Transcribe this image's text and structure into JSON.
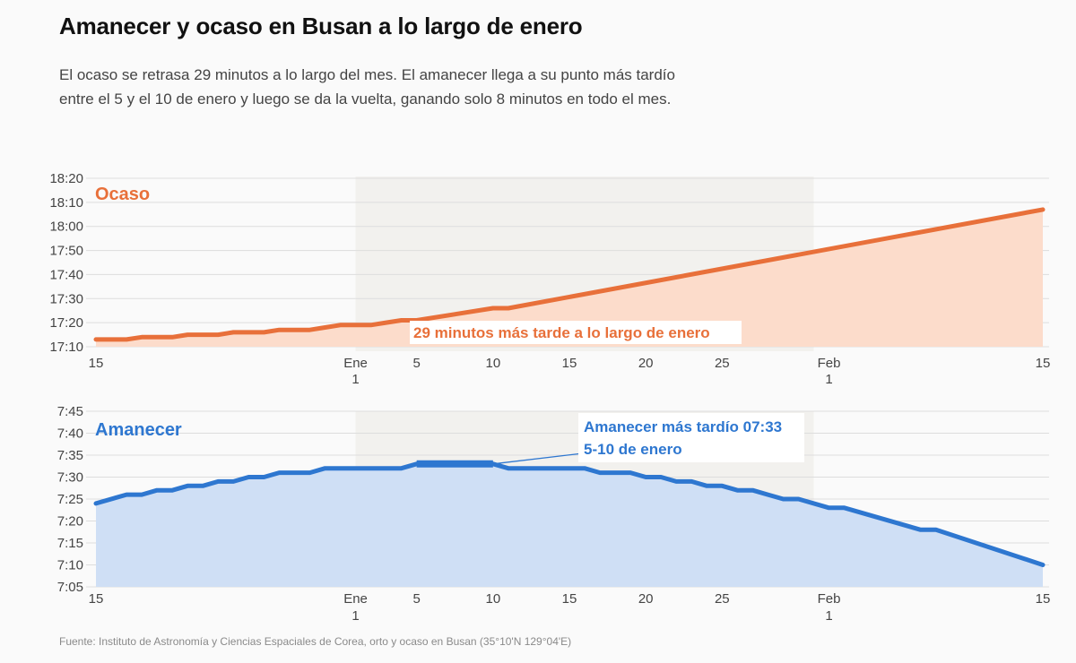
{
  "header": {
    "title": "Amanecer y ocaso en Busan a lo largo de enero",
    "subtitle": "El ocaso se retrasa 29 minutos a lo largo del mes. El amanecer llega a su punto más tardío entre el 5 y el 10 de enero y luego se da la vuelta, ganando solo 8 minutos en todo el mes."
  },
  "footer": {
    "source": "Fuente: Instituto de Astronomía y Ciencias Espaciales de Corea, orto y ocaso en Busan (35°10'N 129°04'E)"
  },
  "colors": {
    "sunset": "#e8703a",
    "sunset_fill": "#fcdccb",
    "sunrise": "#2e77d0",
    "sunrise_fill": "#cfdff5",
    "january_band": "#f2f1ee",
    "grid": "#dddddd"
  },
  "chart_data": [
    {
      "type": "area",
      "series_label": "Ocaso",
      "annotation": "29 minutos más tarde a lo largo de enero",
      "x_domain": [
        "2023-12-15",
        "2024-02-15"
      ],
      "highlight_range": [
        "2024-01-01",
        "2024-01-31"
      ],
      "ylim": [
        "17:10",
        "18:20"
      ],
      "yticks": [
        "17:10",
        "17:20",
        "17:30",
        "17:40",
        "17:50",
        "18:00",
        "18:10",
        "18:20"
      ],
      "xticks": [
        {
          "date": "2023-12-15",
          "label": "15"
        },
        {
          "date": "2024-01-01",
          "label": "Ene",
          "label2": "1"
        },
        {
          "date": "2024-01-05",
          "label": "5"
        },
        {
          "date": "2024-01-10",
          "label": "10"
        },
        {
          "date": "2024-01-15",
          "label": "15"
        },
        {
          "date": "2024-01-20",
          "label": "20"
        },
        {
          "date": "2024-01-25",
          "label": "25"
        },
        {
          "date": "2024-02-01",
          "label": "Feb",
          "label2": "1"
        },
        {
          "date": "2024-02-15",
          "label": "15"
        }
      ],
      "points": [
        {
          "date": "2023-12-15",
          "time": "17:13"
        },
        {
          "date": "2023-12-17",
          "time": "17:13"
        },
        {
          "date": "2023-12-18",
          "time": "17:14"
        },
        {
          "date": "2023-12-20",
          "time": "17:14"
        },
        {
          "date": "2023-12-21",
          "time": "17:15"
        },
        {
          "date": "2023-12-23",
          "time": "17:15"
        },
        {
          "date": "2023-12-24",
          "time": "17:16"
        },
        {
          "date": "2023-12-26",
          "time": "17:16"
        },
        {
          "date": "2023-12-27",
          "time": "17:17"
        },
        {
          "date": "2023-12-29",
          "time": "17:17"
        },
        {
          "date": "2023-12-30",
          "time": "17:18"
        },
        {
          "date": "2023-12-31",
          "time": "17:19"
        },
        {
          "date": "2024-01-02",
          "time": "17:19"
        },
        {
          "date": "2024-01-03",
          "time": "17:20"
        },
        {
          "date": "2024-01-04",
          "time": "17:21"
        },
        {
          "date": "2024-01-05",
          "time": "17:21"
        },
        {
          "date": "2024-01-10",
          "time": "17:26"
        },
        {
          "date": "2024-01-11",
          "time": "17:26"
        },
        {
          "date": "2024-02-15",
          "time": "18:07"
        }
      ]
    },
    {
      "type": "area",
      "series_label": "Amanecer",
      "annotation_line1": "Amanecer más tardío 07:33",
      "annotation_line2": "5-10 de enero",
      "highlight_points": [
        "2024-01-05",
        "2024-01-10"
      ],
      "x_domain": [
        "2023-12-15",
        "2024-02-15"
      ],
      "highlight_range": [
        "2024-01-01",
        "2024-01-31"
      ],
      "ylim": [
        "7:05",
        "7:45"
      ],
      "yticks": [
        "7:05",
        "7:10",
        "7:15",
        "7:20",
        "7:25",
        "7:30",
        "7:35",
        "7:40",
        "7:45"
      ],
      "xticks": [
        {
          "date": "2023-12-15",
          "label": "15"
        },
        {
          "date": "2024-01-01",
          "label": "Ene",
          "label2": "1"
        },
        {
          "date": "2024-01-05",
          "label": "5"
        },
        {
          "date": "2024-01-10",
          "label": "10"
        },
        {
          "date": "2024-01-15",
          "label": "15"
        },
        {
          "date": "2024-01-20",
          "label": "20"
        },
        {
          "date": "2024-01-25",
          "label": "25"
        },
        {
          "date": "2024-02-01",
          "label": "Feb",
          "label2": "1"
        },
        {
          "date": "2024-02-15",
          "label": "15"
        }
      ],
      "points": [
        {
          "date": "2023-12-15",
          "time": "7:24"
        },
        {
          "date": "2023-12-17",
          "time": "7:26"
        },
        {
          "date": "2023-12-18",
          "time": "7:26"
        },
        {
          "date": "2023-12-19",
          "time": "7:27"
        },
        {
          "date": "2023-12-20",
          "time": "7:27"
        },
        {
          "date": "2023-12-21",
          "time": "7:28"
        },
        {
          "date": "2023-12-22",
          "time": "7:28"
        },
        {
          "date": "2023-12-23",
          "time": "7:29"
        },
        {
          "date": "2023-12-24",
          "time": "7:29"
        },
        {
          "date": "2023-12-25",
          "time": "7:30"
        },
        {
          "date": "2023-12-26",
          "time": "7:30"
        },
        {
          "date": "2023-12-27",
          "time": "7:31"
        },
        {
          "date": "2023-12-29",
          "time": "7:31"
        },
        {
          "date": "2023-12-30",
          "time": "7:32"
        },
        {
          "date": "2024-01-04",
          "time": "7:32"
        },
        {
          "date": "2024-01-05",
          "time": "7:33"
        },
        {
          "date": "2024-01-10",
          "time": "7:33"
        },
        {
          "date": "2024-01-11",
          "time": "7:32"
        },
        {
          "date": "2024-01-16",
          "time": "7:32"
        },
        {
          "date": "2024-01-17",
          "time": "7:31"
        },
        {
          "date": "2024-01-19",
          "time": "7:31"
        },
        {
          "date": "2024-01-20",
          "time": "7:30"
        },
        {
          "date": "2024-01-21",
          "time": "7:30"
        },
        {
          "date": "2024-01-22",
          "time": "7:29"
        },
        {
          "date": "2024-01-23",
          "time": "7:29"
        },
        {
          "date": "2024-01-24",
          "time": "7:28"
        },
        {
          "date": "2024-01-25",
          "time": "7:28"
        },
        {
          "date": "2024-01-26",
          "time": "7:27"
        },
        {
          "date": "2024-01-27",
          "time": "7:27"
        },
        {
          "date": "2024-01-28",
          "time": "7:26"
        },
        {
          "date": "2024-01-29",
          "time": "7:25"
        },
        {
          "date": "2024-01-30",
          "time": "7:25"
        },
        {
          "date": "2024-02-01",
          "time": "7:23"
        },
        {
          "date": "2024-02-02",
          "time": "7:23"
        },
        {
          "date": "2024-02-07",
          "time": "7:18"
        },
        {
          "date": "2024-02-08",
          "time": "7:18"
        },
        {
          "date": "2024-02-15",
          "time": "7:10"
        }
      ]
    }
  ]
}
